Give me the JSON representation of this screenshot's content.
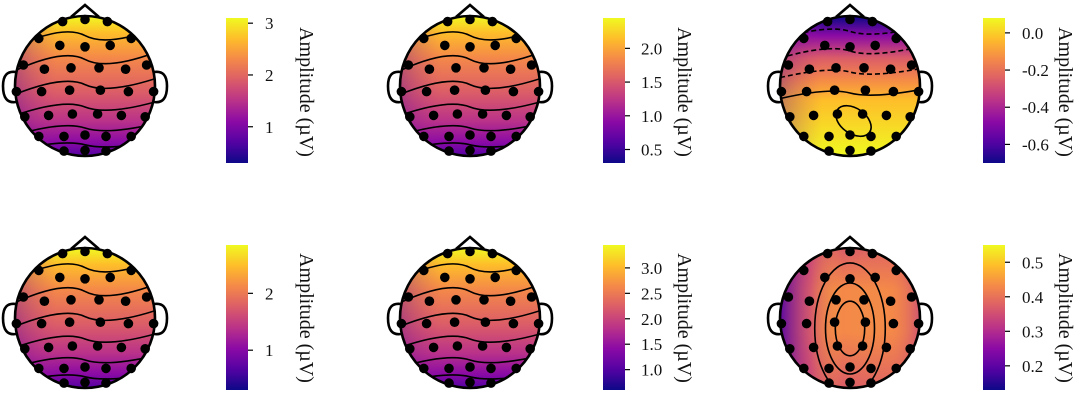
{
  "colormap": {
    "name": "plasma",
    "stops": [
      "#0d0887",
      "#5402a3",
      "#8b0aa5",
      "#b93289",
      "#db5c68",
      "#f48849",
      "#febd2a",
      "#f0f921"
    ]
  },
  "panels": [
    {
      "id": "panel-1",
      "colorbar_label": "Amplitude (µV)",
      "ticks": [
        "3",
        "2",
        "1"
      ],
      "tick_values": [
        3,
        2,
        1
      ],
      "range": [
        0.3,
        3.1
      ],
      "field": "frontal-high"
    },
    {
      "id": "panel-2",
      "colorbar_label": "Amplitude (µV)",
      "ticks": [
        "2.0",
        "1.5",
        "1.0",
        "0.5"
      ],
      "tick_values": [
        2.0,
        1.5,
        1.0,
        0.5
      ],
      "range": [
        0.3,
        2.45
      ],
      "field": "frontal-high"
    },
    {
      "id": "panel-3",
      "colorbar_label": "Amplitude (µV)",
      "ticks": [
        "0.0",
        "-0.2",
        "-0.4",
        "-0.6"
      ],
      "tick_values": [
        0.0,
        -0.2,
        -0.4,
        -0.6
      ],
      "range": [
        -0.7,
        0.08
      ],
      "field": "frontal-low"
    },
    {
      "id": "panel-4",
      "colorbar_label": "Amplitude (µV)",
      "ticks": [
        "2",
        "1"
      ],
      "tick_values": [
        2,
        1
      ],
      "range": [
        0.3,
        2.85
      ],
      "field": "frontal-high"
    },
    {
      "id": "panel-5",
      "colorbar_label": "Amplitude (µV)",
      "ticks": [
        "3.0",
        "2.5",
        "2.0",
        "1.5",
        "1.0"
      ],
      "tick_values": [
        3.0,
        2.5,
        2.0,
        1.5,
        1.0
      ],
      "range": [
        0.6,
        3.45
      ],
      "field": "frontal-high"
    },
    {
      "id": "panel-6",
      "colorbar_label": "Amplitude (µV)",
      "ticks": [
        "0.5",
        "0.4",
        "0.3",
        "0.2"
      ],
      "tick_values": [
        0.5,
        0.4,
        0.3,
        0.2
      ],
      "range": [
        0.13,
        0.55
      ],
      "field": "central"
    }
  ],
  "electrodes": [
    [
      0.0,
      -0.95
    ],
    [
      -0.32,
      -0.92
    ],
    [
      0.32,
      -0.92
    ],
    [
      -0.66,
      -0.68
    ],
    [
      -0.36,
      -0.58
    ],
    [
      0.0,
      -0.56
    ],
    [
      0.36,
      -0.58
    ],
    [
      0.66,
      -0.68
    ],
    [
      -0.88,
      -0.3
    ],
    [
      -0.58,
      -0.24
    ],
    [
      -0.2,
      -0.26
    ],
    [
      0.2,
      -0.26
    ],
    [
      0.58,
      -0.24
    ],
    [
      0.88,
      -0.3
    ],
    [
      -0.98,
      0.08
    ],
    [
      -0.62,
      0.08
    ],
    [
      -0.22,
      0.06
    ],
    [
      0.22,
      0.06
    ],
    [
      0.62,
      0.08
    ],
    [
      0.98,
      0.08
    ],
    [
      -0.86,
      0.44
    ],
    [
      -0.52,
      0.42
    ],
    [
      -0.18,
      0.4
    ],
    [
      0.18,
      0.4
    ],
    [
      0.52,
      0.42
    ],
    [
      0.86,
      0.44
    ],
    [
      -0.66,
      0.72
    ],
    [
      -0.3,
      0.72
    ],
    [
      0.0,
      0.7
    ],
    [
      0.3,
      0.72
    ],
    [
      0.66,
      0.72
    ],
    [
      -0.3,
      0.93
    ],
    [
      0.0,
      0.92
    ],
    [
      0.3,
      0.93
    ]
  ]
}
